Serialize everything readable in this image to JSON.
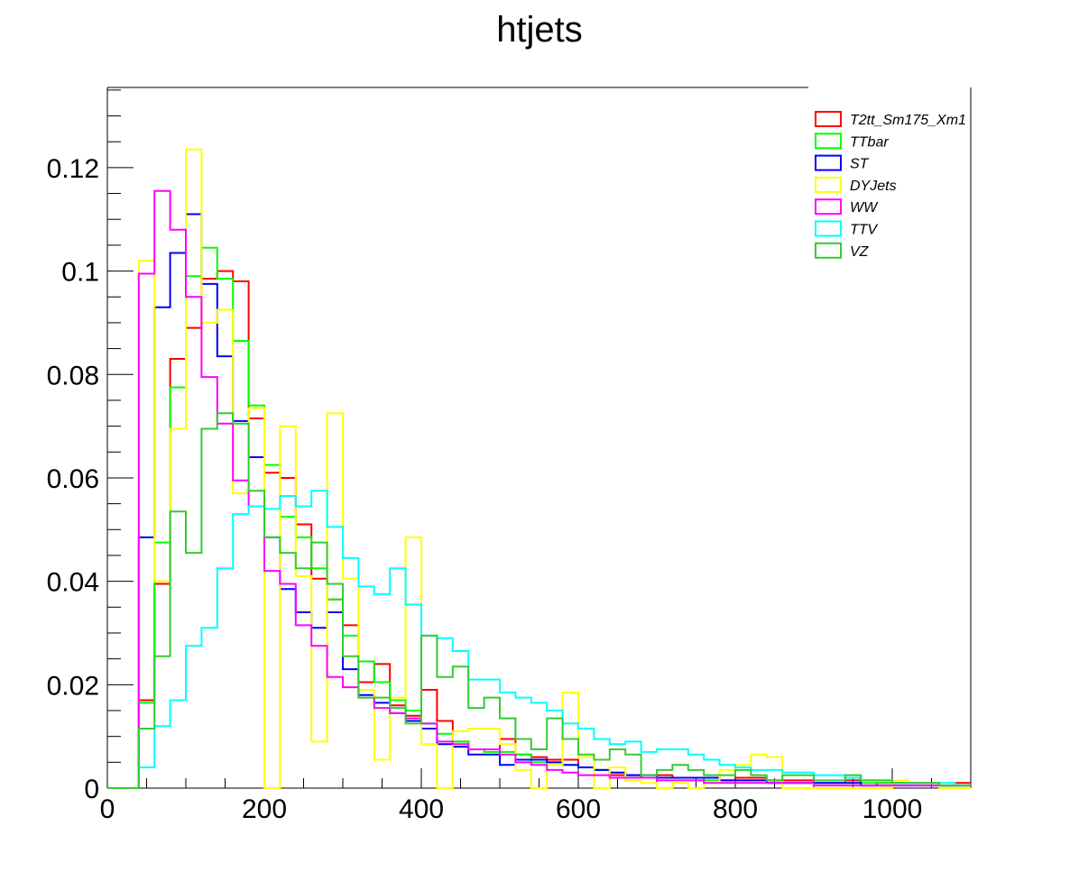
{
  "chart_data": {
    "type": "line",
    "title": "htjets",
    "xlabel": "",
    "ylabel": "",
    "xlim": [
      0,
      1100
    ],
    "ylim": [
      0,
      0.1355
    ],
    "legend_position": "top-right",
    "grid": false,
    "bin_width": 20,
    "x_tick_labels": [
      "0",
      "200",
      "400",
      "600",
      "800",
      "1000"
    ],
    "x_tick_values": [
      0,
      200,
      400,
      600,
      800,
      1000
    ],
    "y_tick_labels": [
      "0",
      "0.02",
      "0.04",
      "0.06",
      "0.08",
      "0.1",
      "0.12"
    ],
    "y_tick_values": [
      0,
      0.02,
      0.04,
      0.06,
      0.08,
      0.1,
      0.12
    ],
    "series": [
      {
        "name": "T2tt_Sm175_Xm1",
        "color": "#ff0000",
        "values": [
          0,
          0,
          0.017,
          0.0395,
          0.083,
          0.089,
          0.0985,
          0.1,
          0.098,
          0.0715,
          0.061,
          0.06,
          0.051,
          0.0405,
          0.0365,
          0.0315,
          0.0205,
          0.024,
          0.016,
          0.014,
          0.019,
          0.013,
          0.009,
          0.0075,
          0.0075,
          0.0095,
          0.0065,
          0.006,
          0.0055,
          0.0055,
          0.004,
          0.0035,
          0.0025,
          0.0025,
          0.002,
          0.0025,
          0.002,
          0.002,
          0.002,
          0.0015,
          0.002,
          0.002,
          0.0015,
          0.0015,
          0.0015,
          0.001,
          0.001,
          0.0015,
          0.0005,
          0.001,
          0.001,
          0.001,
          0.001,
          0.0005,
          0.001,
          0.0005,
          0.0005,
          0.0005,
          0.0005,
          0.0005,
          0.0005,
          0.0005,
          0.0005,
          0.0005,
          0.0005,
          0.0005,
          0.0005,
          0.0005,
          0.0005,
          0.0005,
          0.0005,
          0.0005,
          0.0005,
          0.0005,
          0.0005,
          0.0005,
          0.0005,
          0.0005,
          0.0005,
          0.0005,
          0.0005,
          0.0005,
          0.0005,
          0.0005,
          0.0005,
          0.0005,
          0.0005,
          0.0005,
          0.0005,
          0.0005,
          0.0005,
          0.0005,
          0.0005,
          0.0005,
          0.0005,
          0.0005,
          0.0005,
          0.0005,
          0.0005,
          0.0005,
          0.0005,
          0.0005,
          0.0005,
          0.0005,
          0.0005,
          0.0005,
          0.0005,
          0.0005,
          0.0005,
          0.0005,
          0.0005,
          0.0005,
          0.0005,
          0.0005,
          0.0005,
          0.0005,
          0.0005,
          0.0005,
          0.0005,
          0.0005
        ]
      },
      {
        "name": "TTbar",
        "color": "#00ff00",
        "values": [
          0,
          0,
          0.0165,
          0.0475,
          0.0775,
          0.099,
          0.1045,
          0.0985,
          0.0865,
          0.074,
          0.0625,
          0.0525,
          0.0485,
          0.0425,
          0.0365,
          0.0295,
          0.0245,
          0.0205,
          0.017,
          0.015,
          0.0125,
          0.0105,
          0.009,
          0.0075,
          0.007,
          0.007,
          0.0065,
          0.005,
          0.005,
          0.0045,
          0.004,
          0.0035,
          0.003,
          0.0025,
          0.0025,
          0.002,
          0.002,
          0.002,
          0.0015,
          0.0015,
          0.0015,
          0.0015,
          0.0015,
          0.001,
          0.001,
          0.001,
          0.001,
          0.001,
          0.001,
          0.001,
          0.001,
          0.001,
          0.0005,
          0.0005,
          0.0005,
          0.009
        ]
      },
      {
        "name": "ST",
        "color": "#0000ff",
        "values": [
          0,
          0,
          0.0485,
          0.093,
          0.1035,
          0.111,
          0.0975,
          0.0835,
          0.071,
          0.064,
          0.0485,
          0.0385,
          0.034,
          0.031,
          0.034,
          0.023,
          0.018,
          0.0165,
          0.0145,
          0.013,
          0.0115,
          0.0085,
          0.008,
          0.0065,
          0.0065,
          0.0045,
          0.0055,
          0.0055,
          0.005,
          0.0045,
          0.004,
          0.0035,
          0.003,
          0.0025,
          0.0025,
          0.002,
          0.002,
          0.002,
          0.002,
          0.0015,
          0.0015,
          0.0015,
          0.001,
          0.001,
          0.001,
          0.001,
          0.001,
          0.001,
          0.0005,
          0.0005,
          0.0005,
          0.0005,
          0.0005,
          0.0005,
          0.0005,
          0.0045
        ]
      },
      {
        "name": "DYJets",
        "color": "#ffff00",
        "values": [
          0,
          0,
          0.102,
          0.04,
          0.0695,
          0.1235,
          0.09,
          0.0925,
          0.057,
          0.0735,
          0,
          0.07,
          0.041,
          0.009,
          0.0725,
          0.0405,
          0.019,
          0.0055,
          0.0175,
          0.0485,
          0.0085,
          0,
          0.011,
          0.0115,
          0.0115,
          0.0085,
          0.0035,
          0,
          0.0045,
          0.0185,
          0.006,
          0,
          0.004,
          0.0015,
          0.001,
          0,
          0.001,
          0,
          0.001,
          0.0035,
          0.0045,
          0.0065,
          0.006,
          0,
          0,
          0,
          0,
          0,
          0,
          0,
          0.0015,
          0.001,
          0.0005,
          0,
          0,
          0
        ]
      },
      {
        "name": "WW",
        "color": "#ff00ff",
        "values": [
          0,
          0,
          0.0995,
          0.1155,
          0.108,
          0.095,
          0.0795,
          0.0705,
          0.0595,
          0.0545,
          0.042,
          0.0395,
          0.0315,
          0.0275,
          0.0215,
          0.0195,
          0.0175,
          0.0155,
          0.0145,
          0.0135,
          0.0125,
          0.009,
          0.0085,
          0.0075,
          0.0075,
          0.0065,
          0.005,
          0.0045,
          0.0035,
          0.003,
          0.0025,
          0.0025,
          0.002,
          0.002,
          0.002,
          0.0015,
          0.0015,
          0.0015,
          0.001,
          0.001,
          0.001,
          0.001,
          0.001,
          0.001,
          0.001,
          0.0005,
          0.0005,
          0.0005,
          0.0005,
          0.0005,
          0.0005,
          0.0005,
          0.0005,
          0.0005,
          0.0005,
          0.002
        ]
      },
      {
        "name": "TTV",
        "color": "#00ffff",
        "values": [
          0,
          0,
          0.004,
          0.012,
          0.017,
          0.0275,
          0.031,
          0.0425,
          0.053,
          0.0545,
          0.054,
          0.0565,
          0.0545,
          0.0575,
          0.0505,
          0.0445,
          0.039,
          0.0375,
          0.0425,
          0.0355,
          0.0295,
          0.029,
          0.0265,
          0.021,
          0.021,
          0.0185,
          0.0175,
          0.0165,
          0.015,
          0.0125,
          0.0115,
          0.0095,
          0.0085,
          0.009,
          0.007,
          0.0075,
          0.0075,
          0.0065,
          0.0055,
          0.0045,
          0.004,
          0.0035,
          0.0035,
          0.003,
          0.003,
          0.0025,
          0.0025,
          0.002,
          0.0015,
          0.0015,
          0.001,
          0.001,
          0.001,
          0.001,
          0.0005,
          0.008
        ]
      },
      {
        "name": "VZ",
        "color": "#33cc33",
        "values": [
          0,
          0,
          0.0115,
          0.0255,
          0.0535,
          0.0455,
          0.0695,
          0.0725,
          0.0705,
          0.0575,
          0.0485,
          0.0455,
          0.0425,
          0.0475,
          0.0395,
          0.0255,
          0.0175,
          0.0175,
          0.0155,
          0.0125,
          0.0295,
          0.0215,
          0.0235,
          0.0155,
          0.0175,
          0.0135,
          0.0095,
          0.0075,
          0.0135,
          0.0095,
          0.0065,
          0.0055,
          0.0075,
          0.0065,
          0.0025,
          0.0035,
          0.0045,
          0.0035,
          0.0025,
          0.0025,
          0.0035,
          0.0025,
          0.0015,
          0.0025,
          0.0025,
          0.0015,
          0.0015,
          0.0025,
          0.0015,
          0.0015,
          0.001,
          0.001,
          0.001,
          0.0005,
          0.0005,
          0.0085
        ]
      }
    ]
  }
}
